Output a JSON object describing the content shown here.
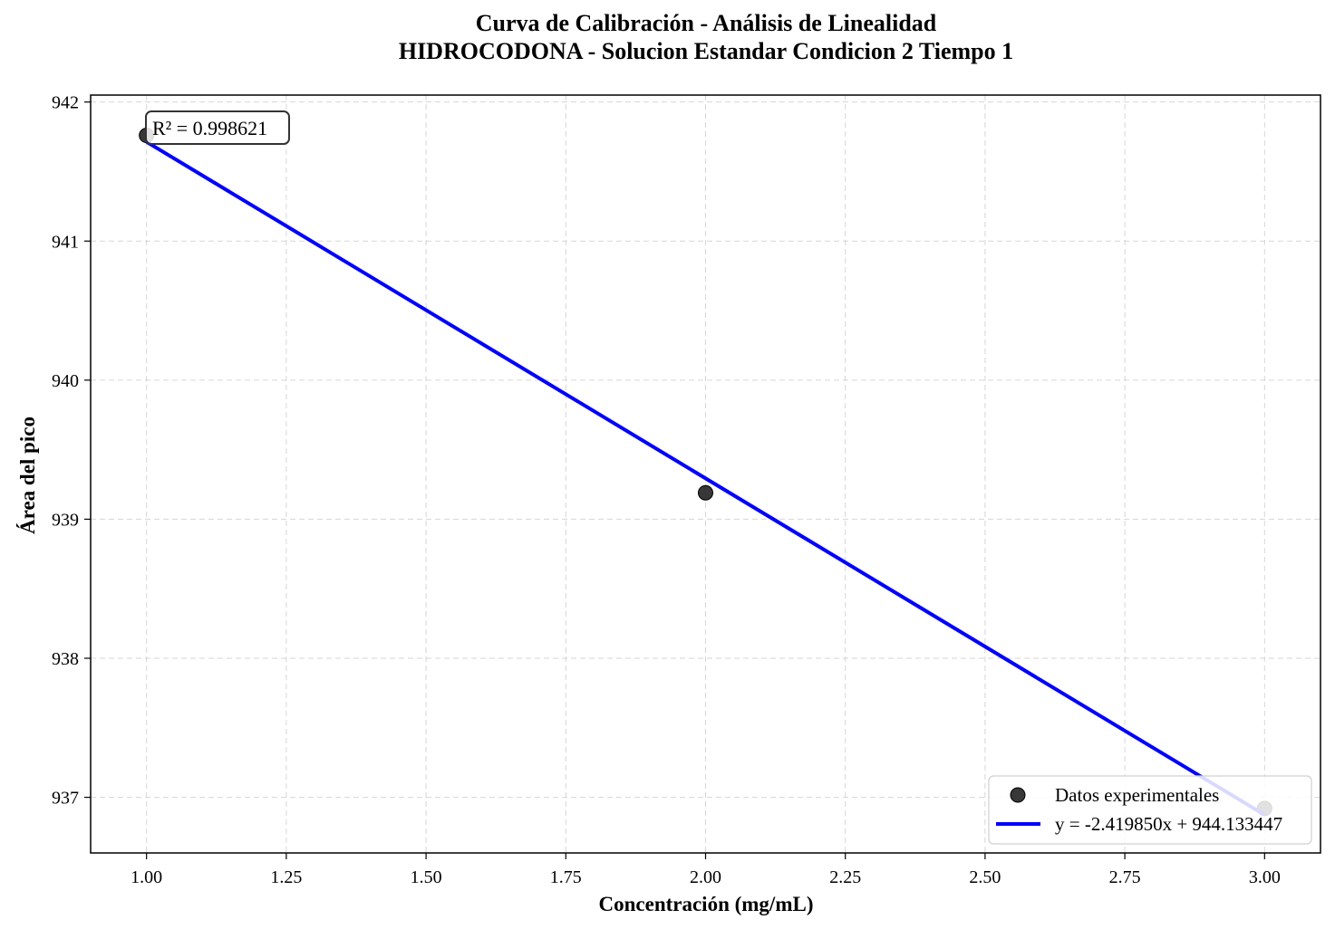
{
  "chart_data": {
    "type": "scatter",
    "title": "Curva de Calibración - Análisis de Linealidad",
    "subtitle": "HIDROCODONA - Solucion Estandar Condicion 2 Tiempo 1",
    "xlabel": "Concentración (mg/mL)",
    "ylabel": "Área del pico",
    "xlim": [
      0.9,
      3.1
    ],
    "ylim": [
      936.6,
      942.05
    ],
    "x_ticks": [
      1.0,
      1.25,
      1.5,
      1.75,
      2.0,
      2.25,
      2.5,
      2.75,
      3.0
    ],
    "x_tick_labels": [
      "1.00",
      "1.25",
      "1.50",
      "1.75",
      "2.00",
      "2.25",
      "2.50",
      "2.75",
      "3.00"
    ],
    "y_ticks": [
      937,
      938,
      939,
      940,
      941,
      942
    ],
    "y_tick_labels": [
      "937",
      "938",
      "939",
      "940",
      "941",
      "942"
    ],
    "grid": true,
    "legend_position": "lower-right",
    "series": [
      {
        "name": "Datos experimentales",
        "kind": "scatter",
        "color": "#222222",
        "x": [
          1.0,
          2.0,
          3.0
        ],
        "y": [
          941.76,
          939.19,
          936.92
        ]
      },
      {
        "name": "y = -2.419850x + 944.133447",
        "kind": "line",
        "color": "#0000ff",
        "slope": -2.41985,
        "intercept": 944.133447,
        "x": [
          1.0,
          3.0
        ]
      }
    ],
    "annotation": "R² = 0.998621"
  }
}
